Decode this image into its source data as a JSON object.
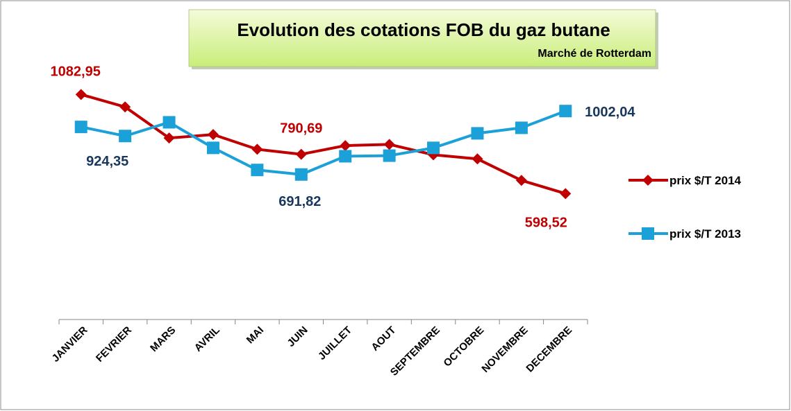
{
  "chart_data": {
    "type": "line",
    "title": "Evolution des cotations FOB du gaz butane",
    "subtitle": "Marché de Rotterdam",
    "categories": [
      "JANVIER",
      "FEVRIER",
      "MARS",
      "AVRIL",
      "MAI",
      "JUIN",
      "JUILLET",
      "AOUT",
      "SEPTEMBRE",
      "OCTOBRE",
      "NOVEMBRE",
      "DECEMBRE"
    ],
    "series": [
      {
        "name": "prix $/T 2014",
        "color": "#c00000",
        "values": [
          1082.95,
          1022,
          870,
          887,
          815,
          790.69,
          833,
          839,
          788,
          768,
          663,
          598.52
        ],
        "value_labels": [
          "1082,95",
          null,
          null,
          null,
          null,
          "790,69",
          null,
          null,
          null,
          null,
          null,
          "598,52"
        ]
      },
      {
        "name": "prix $/T 2013",
        "color": "#1ba1d8",
        "values": [
          924.35,
          880,
          947,
          822,
          714,
          691.82,
          781,
          784,
          822,
          893,
          920,
          1002.04
        ],
        "value_labels": [
          "924,35",
          null,
          null,
          null,
          null,
          "691,82",
          null,
          null,
          null,
          null,
          null,
          "1002,04"
        ]
      }
    ]
  }
}
